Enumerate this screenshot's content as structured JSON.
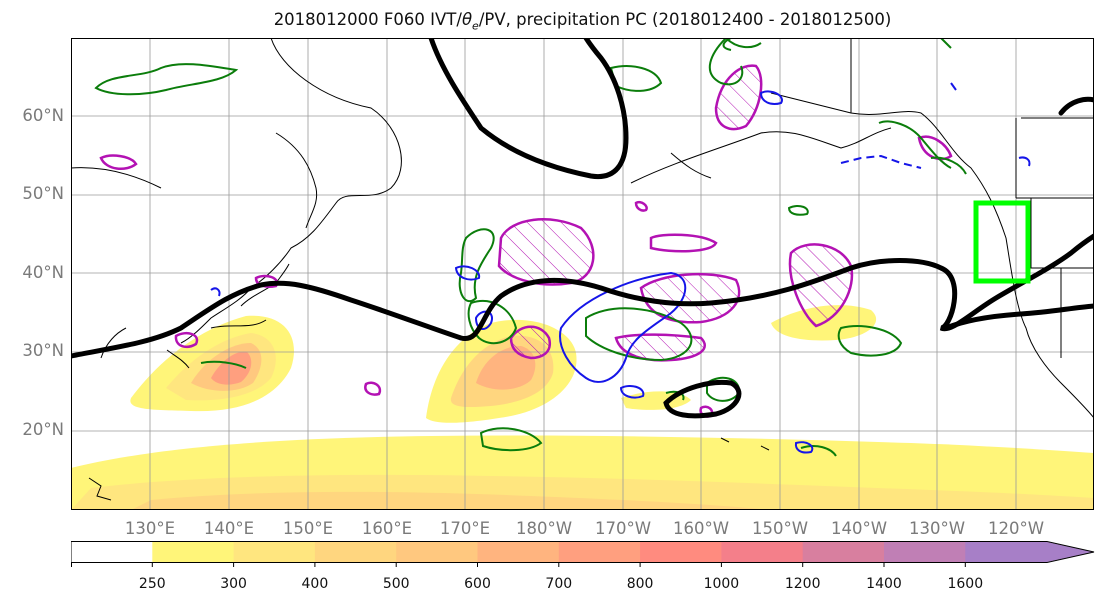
{
  "title": {
    "prefix": "2018012000 F060 IVT/",
    "theta": "θ",
    "theta_sub": "e",
    "suffix": "/PV, precipitation PC (2018012400 - 2018012500)"
  },
  "lat_labels": [
    "60°N",
    "50°N",
    "40°N",
    "30°N",
    "20°N"
  ],
  "lon_labels": [
    "130°E",
    "140°E",
    "150°E",
    "160°E",
    "170°E",
    "180°W",
    "170°W",
    "160°W",
    "150°W",
    "140°W",
    "130°W",
    "120°W"
  ],
  "colorbar": {
    "ticks": [
      "250",
      "300",
      "400",
      "500",
      "600",
      "700",
      "800",
      "1000",
      "1200",
      "1400",
      "1600"
    ],
    "colors": [
      "#ffffff",
      "#fff579",
      "#ffe67f",
      "#ffd67f",
      "#ffc87f",
      "#ffb47f",
      "#ff9f7f",
      "#ff8b7f",
      "#f47f8a",
      "#d87f9f",
      "#c07fb5",
      "#a77fc7"
    ]
  },
  "colors": {
    "ivt_shading": "#ffd67f",
    "pv_contour": "#000000",
    "theta_e_green": "#0b7d0b",
    "theta_e_blue": "#1515e8",
    "precip_magenta": "#b312b3",
    "target_box": "#00ff00"
  }
}
